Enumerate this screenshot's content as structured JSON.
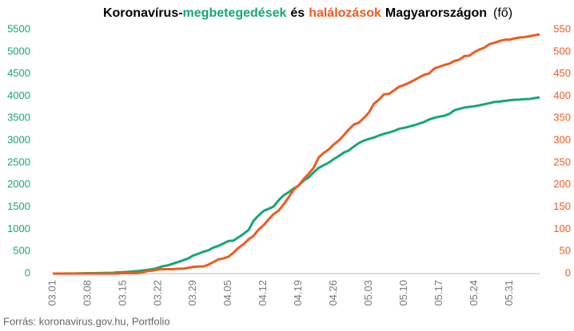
{
  "chart_data": {
    "type": "line",
    "title": [
      "Koronavírus-",
      "megbetegedések",
      "és",
      "halálozások",
      "Magyarországon",
      "(fő)"
    ],
    "source": "Forrás: koronavirus.gov.hu, Portfolio",
    "categories": [
      "03.01",
      null,
      null,
      null,
      null,
      null,
      null,
      "03.08",
      null,
      null,
      null,
      null,
      null,
      null,
      "03.15",
      null,
      null,
      null,
      null,
      null,
      null,
      "03.22",
      null,
      null,
      null,
      null,
      null,
      null,
      "03.29",
      null,
      null,
      null,
      null,
      null,
      null,
      "04.05",
      null,
      null,
      null,
      null,
      null,
      null,
      "04.12",
      null,
      null,
      null,
      null,
      null,
      null,
      "04.19",
      null,
      null,
      null,
      null,
      null,
      null,
      "04.26",
      null,
      null,
      null,
      null,
      null,
      null,
      "05.03",
      null,
      null,
      null,
      null,
      null,
      null,
      "05.10",
      null,
      null,
      null,
      null,
      null,
      null,
      "05.17",
      null,
      null,
      null,
      null,
      null,
      null,
      "05.24",
      null,
      null,
      null,
      null,
      null,
      null,
      "05.31",
      null,
      null,
      null,
      null,
      null,
      null
    ],
    "series": [
      {
        "name": "megbetegedések",
        "color": "#17a57a",
        "values": [
          0,
          0,
          0,
          2,
          2,
          4,
          7,
          9,
          9,
          12,
          13,
          16,
          19,
          30,
          32,
          39,
          50,
          58,
          73,
          85,
          103,
          131,
          167,
          187,
          226,
          261,
          300,
          343,
          408,
          447,
          492,
          525,
          585,
          623,
          678,
          733,
          744,
          817,
          895,
          980,
          1190,
          1310,
          1410,
          1458,
          1512,
          1652,
          1763,
          1834,
          1916,
          1984,
          2098,
          2168,
          2284,
          2383,
          2443,
          2500,
          2583,
          2649,
          2727,
          2775,
          2863,
          2942,
          2998,
          3035,
          3065,
          3111,
          3150,
          3178,
          3213,
          3263,
          3284,
          3313,
          3341,
          3380,
          3417,
          3473,
          3509,
          3535,
          3556,
          3598,
          3678,
          3713,
          3741,
          3756,
          3771,
          3793,
          3816,
          3841,
          3867,
          3876,
          3892,
          3905,
          3916,
          3921,
          3931,
          3935,
          3954,
          3970
        ]
      },
      {
        "name": "halálozások",
        "color": "#f05a1e",
        "axis": "y2",
        "values": [
          0,
          0,
          0,
          0,
          0,
          0,
          0,
          0,
          0,
          0,
          0,
          0,
          0,
          0,
          1,
          1,
          1,
          1,
          3,
          6,
          7,
          9,
          10,
          10,
          10,
          11,
          11,
          13,
          15,
          16,
          16,
          20,
          26,
          32,
          34,
          38,
          47,
          58,
          66,
          77,
          85,
          99,
          109,
          122,
          134,
          142,
          156,
          172,
          189,
          199,
          213,
          225,
          239,
          262,
          272,
          280,
          291,
          300,
          312,
          325,
          336,
          340,
          351,
          363,
          383,
          392,
          404,
          405,
          413,
          421,
          425,
          430,
          436,
          442,
          448,
          451,
          462,
          466,
          470,
          473,
          479,
          482,
          490,
          491,
          499,
          505,
          509,
          517,
          520,
          524,
          527,
          527,
          530,
          532,
          533,
          535,
          537,
          539
        ]
      }
    ],
    "ylim": [
      0,
      5500
    ],
    "yticks": [
      0,
      500,
      1000,
      1500,
      2000,
      2500,
      3000,
      3500,
      4000,
      4500,
      5000,
      5500
    ],
    "y2lim": [
      0,
      550
    ],
    "y2ticks": [
      0,
      50,
      100,
      150,
      200,
      250,
      300,
      350,
      400,
      450,
      500,
      550
    ]
  }
}
